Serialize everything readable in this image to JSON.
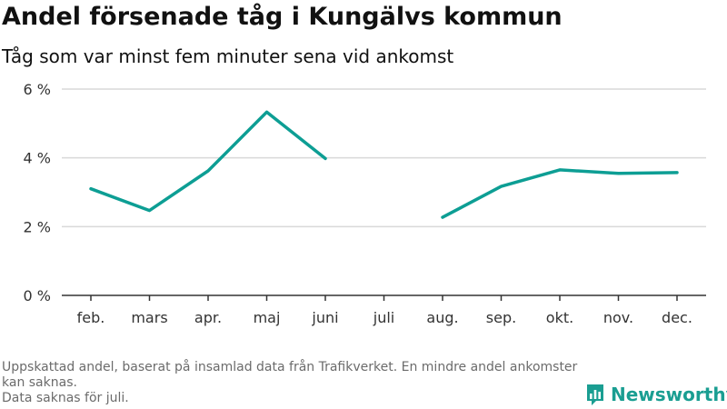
{
  "title": "Andel försenade tåg i Kungälvs kommun",
  "subtitle": "Tåg som var minst fem minuter sena vid ankomst",
  "footer": {
    "line1": "Uppskattad andel, baserat på insamlad data från Trafikverket. En mindre andel ankomster kan saknas.",
    "line2": "Data saknas för juli."
  },
  "brand": {
    "name": "Newsworthy",
    "icon": "newsworthy-logo-icon",
    "color": "#1a9e92"
  },
  "colors": {
    "line": "#0d9e94",
    "grid": "#d9d9d9",
    "axis": "#333333",
    "text": "#333333"
  },
  "chart_data": {
    "type": "line",
    "title": "Andel försenade tåg i Kungälvs kommun",
    "subtitle": "Tåg som var minst fem minuter sena vid ankomst",
    "categories": [
      "feb.",
      "mars",
      "apr.",
      "maj",
      "juni",
      "juli",
      "aug.",
      "sep.",
      "okt.",
      "nov.",
      "dec."
    ],
    "series": [
      {
        "values": [
          3.1,
          2.47,
          3.62,
          5.33,
          3.98,
          null,
          2.27,
          3.17,
          3.65,
          3.55,
          3.57
        ]
      }
    ],
    "yticks": [
      0,
      2,
      4,
      6
    ],
    "ytick_labels": [
      "0 %",
      "2 %",
      "4 %",
      "6 %"
    ],
    "ylim": [
      0,
      6
    ],
    "grid": true,
    "xlabel": "",
    "ylabel": ""
  }
}
